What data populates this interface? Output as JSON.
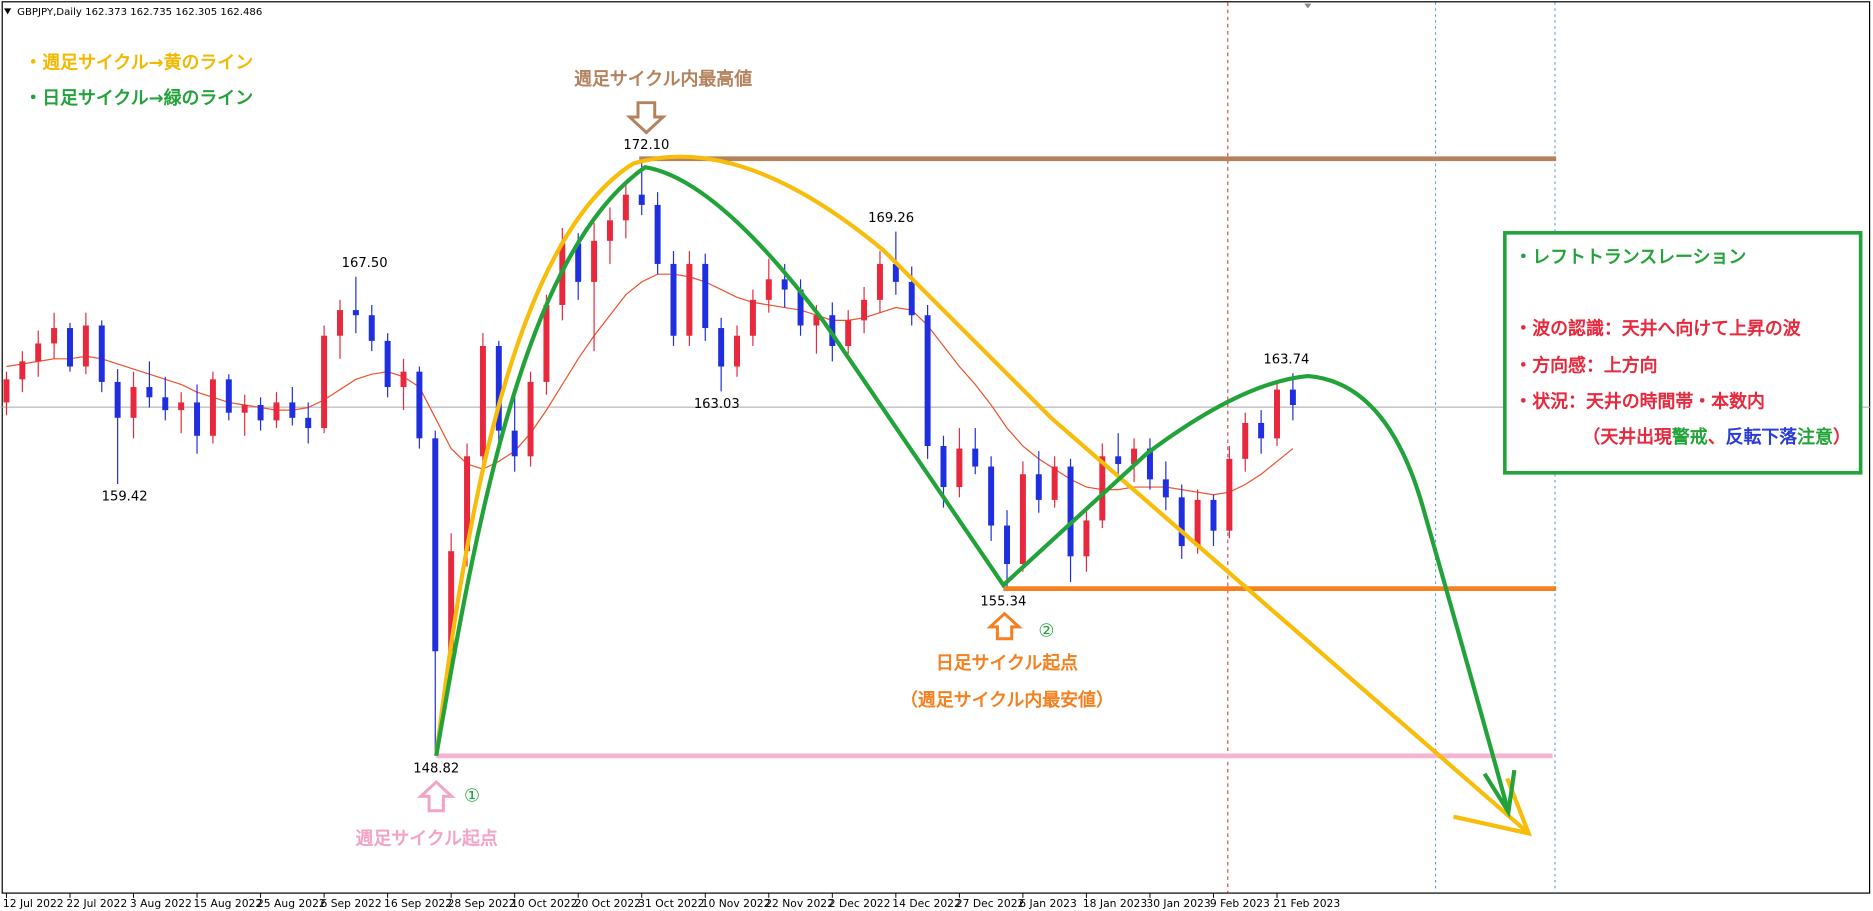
{
  "chart_data": {
    "type": "candlestick",
    "header": "GBPJPY,Daily  162.373 162.735 162.305 162.486",
    "up_color": "#e8283c",
    "down_color": "#1f2fe0",
    "ma_color": "#f0502a",
    "xlim": [
      -0.38,
      117.5
    ],
    "ylim": [
      143.47,
      178.29
    ],
    "xticks": [
      {
        "value": 0,
        "label": "12 Jul 2022"
      },
      {
        "value": 4,
        "label": "22 Jul 2022"
      },
      {
        "value": 8,
        "label": "3 Aug 2022"
      },
      {
        "value": 12,
        "label": "15 Aug 2022"
      },
      {
        "value": 16,
        "label": "25 Aug 2022"
      },
      {
        "value": 20,
        "label": "6 Sep 2022"
      },
      {
        "value": 24,
        "label": "16 Sep 2022"
      },
      {
        "value": 28,
        "label": "28 Sep 2022"
      },
      {
        "value": 32,
        "label": "10 Oct 2022"
      },
      {
        "value": 36,
        "label": "20 Oct 2022"
      },
      {
        "value": 40,
        "label": "31 Oct 2022"
      },
      {
        "value": 44,
        "label": "10 Nov 2022"
      },
      {
        "value": 48,
        "label": "22 Nov 2022"
      },
      {
        "value": 52,
        "label": "2 Dec 2022"
      },
      {
        "value": 56,
        "label": "14 Dec 2022"
      },
      {
        "value": 60,
        "label": "27 Dec 2022"
      },
      {
        "value": 64,
        "label": "6 Jan 2023"
      },
      {
        "value": 68,
        "label": "18 Jan 2023"
      },
      {
        "value": 72,
        "label": "30 Jan 2023"
      },
      {
        "value": 76,
        "label": "9 Feb 2023"
      },
      {
        "value": 80,
        "label": "21 Feb 2023"
      }
    ],
    "candles": [
      [
        162.6,
        163.8,
        162.1,
        163.5
      ],
      [
        163.5,
        164.6,
        163.0,
        164.2
      ],
      [
        164.2,
        165.4,
        163.6,
        164.9
      ],
      [
        164.9,
        166.1,
        164.3,
        165.5
      ],
      [
        165.5,
        165.7,
        163.8,
        164.0
      ],
      [
        164.0,
        166.1,
        163.7,
        165.6
      ],
      [
        165.6,
        165.8,
        163.0,
        163.4
      ],
      [
        163.4,
        163.9,
        159.42,
        162.0
      ],
      [
        162.0,
        163.8,
        161.2,
        163.2
      ],
      [
        163.2,
        164.2,
        162.4,
        162.8
      ],
      [
        162.8,
        163.6,
        161.9,
        162.3
      ],
      [
        162.3,
        163.0,
        161.4,
        162.6
      ],
      [
        162.6,
        163.3,
        160.6,
        161.3
      ],
      [
        161.3,
        163.8,
        161.0,
        163.5
      ],
      [
        163.5,
        163.7,
        161.9,
        162.2
      ],
      [
        162.2,
        162.9,
        161.3,
        162.5
      ],
      [
        162.5,
        162.8,
        161.5,
        161.9
      ],
      [
        161.9,
        163.0,
        161.6,
        162.6
      ],
      [
        162.6,
        163.2,
        161.7,
        162.0
      ],
      [
        162.0,
        162.6,
        161.0,
        161.6
      ],
      [
        161.6,
        165.6,
        161.4,
        165.2
      ],
      [
        165.2,
        166.6,
        164.3,
        166.2
      ],
      [
        166.2,
        167.5,
        165.3,
        166.0
      ],
      [
        166.0,
        166.4,
        164.6,
        165.0
      ],
      [
        165.0,
        165.3,
        162.8,
        163.2
      ],
      [
        163.2,
        164.3,
        162.3,
        163.8
      ],
      [
        163.8,
        164.0,
        160.8,
        161.2
      ],
      [
        161.2,
        161.5,
        148.82,
        152.9
      ],
      [
        152.9,
        157.5,
        152.3,
        156.8
      ],
      [
        156.8,
        161.0,
        156.2,
        160.5
      ],
      [
        160.5,
        165.3,
        159.8,
        164.8
      ],
      [
        164.8,
        165.0,
        160.9,
        161.5
      ],
      [
        161.5,
        163.0,
        159.9,
        160.5
      ],
      [
        160.5,
        163.8,
        160.1,
        163.4
      ],
      [
        163.4,
        166.8,
        162.9,
        166.4
      ],
      [
        166.4,
        169.4,
        165.8,
        168.8
      ],
      [
        168.8,
        169.2,
        166.6,
        167.3
      ],
      [
        167.3,
        169.6,
        164.6,
        168.9
      ],
      [
        168.9,
        170.2,
        168.0,
        169.7
      ],
      [
        169.7,
        171.1,
        169.0,
        170.7
      ],
      [
        170.7,
        172.1,
        169.9,
        170.3
      ],
      [
        170.3,
        170.8,
        167.6,
        168.0
      ],
      [
        168.0,
        168.5,
        164.8,
        165.2
      ],
      [
        165.2,
        168.5,
        164.8,
        168.0
      ],
      [
        168.0,
        168.4,
        165.0,
        165.5
      ],
      [
        165.5,
        165.9,
        163.03,
        164.0
      ],
      [
        164.0,
        165.6,
        163.6,
        165.2
      ],
      [
        165.2,
        167.0,
        164.8,
        166.6
      ],
      [
        166.6,
        168.2,
        166.1,
        167.4
      ],
      [
        167.4,
        168.0,
        166.3,
        167.0
      ],
      [
        167.0,
        167.4,
        165.2,
        165.6
      ],
      [
        165.6,
        166.4,
        164.5,
        166.0
      ],
      [
        166.0,
        166.5,
        164.2,
        164.8
      ],
      [
        164.8,
        166.2,
        164.5,
        165.8
      ],
      [
        165.8,
        167.1,
        165.3,
        166.6
      ],
      [
        166.6,
        168.5,
        166.1,
        168.0
      ],
      [
        168.0,
        169.26,
        166.8,
        167.3
      ],
      [
        167.3,
        167.9,
        165.6,
        166.0
      ],
      [
        166.0,
        166.4,
        160.4,
        160.9
      ],
      [
        160.9,
        161.3,
        158.5,
        159.3
      ],
      [
        159.3,
        161.6,
        158.9,
        160.8
      ],
      [
        160.8,
        161.6,
        159.8,
        160.1
      ],
      [
        160.1,
        160.5,
        157.2,
        157.8
      ],
      [
        157.8,
        158.4,
        155.34,
        156.3
      ],
      [
        156.3,
        160.3,
        156.0,
        159.8
      ],
      [
        159.8,
        160.7,
        158.3,
        158.8
      ],
      [
        158.8,
        160.5,
        158.5,
        160.1
      ],
      [
        160.1,
        160.4,
        155.6,
        156.6
      ],
      [
        156.6,
        158.5,
        156.0,
        158.0
      ],
      [
        158.0,
        161.0,
        157.7,
        160.5
      ],
      [
        160.5,
        161.4,
        159.8,
        160.2
      ],
      [
        160.2,
        161.2,
        159.5,
        160.8
      ],
      [
        160.8,
        161.2,
        159.2,
        159.6
      ],
      [
        159.6,
        160.3,
        158.4,
        158.9
      ],
      [
        158.9,
        159.4,
        156.5,
        157.0
      ],
      [
        157.0,
        159.2,
        156.7,
        158.8
      ],
      [
        158.8,
        159.0,
        157.0,
        157.6
      ],
      [
        157.6,
        160.9,
        157.3,
        160.4
      ],
      [
        160.4,
        162.2,
        159.9,
        161.8
      ],
      [
        161.8,
        162.3,
        160.6,
        161.2
      ],
      [
        161.2,
        163.4,
        160.9,
        163.1
      ],
      [
        163.1,
        163.74,
        161.9,
        162.5
      ]
    ],
    "ma": [
      164.0,
      164.1,
      164.2,
      164.3,
      164.3,
      164.4,
      164.3,
      164.1,
      163.9,
      163.7,
      163.5,
      163.3,
      163.0,
      162.8,
      162.6,
      162.5,
      162.4,
      162.3,
      162.3,
      162.4,
      162.7,
      163.1,
      163.5,
      163.7,
      163.8,
      163.6,
      163.2,
      162.0,
      160.8,
      160.2,
      160.0,
      160.3,
      160.7,
      161.4,
      162.3,
      163.3,
      164.3,
      165.2,
      166.0,
      166.8,
      167.3,
      167.6,
      167.6,
      167.5,
      167.3,
      167.0,
      166.7,
      166.5,
      166.4,
      166.3,
      166.2,
      166.0,
      165.8,
      165.8,
      165.9,
      166.1,
      166.3,
      166.2,
      165.6,
      164.8,
      164.0,
      163.3,
      162.5,
      161.6,
      160.9,
      160.4,
      160.0,
      159.6,
      159.3,
      159.2,
      159.2,
      159.3,
      159.3,
      159.3,
      159.2,
      159.1,
      159.0,
      159.1,
      159.4,
      159.8,
      160.3,
      160.8
    ],
    "price_labels": [
      {
        "value": 172.1,
        "label": "172.10"
      },
      {
        "value": 167.5,
        "label": "167.50"
      },
      159.42,
      163.03,
      169.26,
      155.34,
      163.74,
      148.82
    ],
    "legend": [
      {
        "text": "・週足サイクル→黄のライン",
        "color": "#f5b800"
      },
      {
        "text": "・日足サイクル→緑のライン",
        "color": "#22a33a"
      }
    ],
    "annotations": {
      "weekly_high": "週足サイクル内最高値",
      "mark1": "①",
      "mark2": "②",
      "daily_start": "日足サイクル起点",
      "daily_start_note": "（週足サイクル内最安値）",
      "weekly_start": "週足サイクル起点"
    },
    "box": [
      [
        {
          "text": "・レフトトランスレーション",
          "color": "#22a33a"
        }
      ],
      [
        {
          "text": "・波の認識：天井へ向けて上昇の波",
          "color": "#e8283c"
        }
      ],
      [
        {
          "text": "・方向感：上方向",
          "color": "#e8283c"
        }
      ],
      [
        {
          "text": "・状況：天井の時間帯・本数内",
          "color": "#e8283c"
        }
      ],
      [
        {
          "text": "（天井出現",
          "color": "#e8283c"
        },
        {
          "text": "警戒",
          "color": "#22a33a"
        },
        {
          "text": "、",
          "color": "#e8283c"
        },
        {
          "text": "反転下落",
          "color": "#2a3bd6"
        },
        {
          "text": "注意",
          "color": "#22a33a"
        },
        {
          "text": "）",
          "color": "#e8283c"
        }
      ]
    ]
  }
}
